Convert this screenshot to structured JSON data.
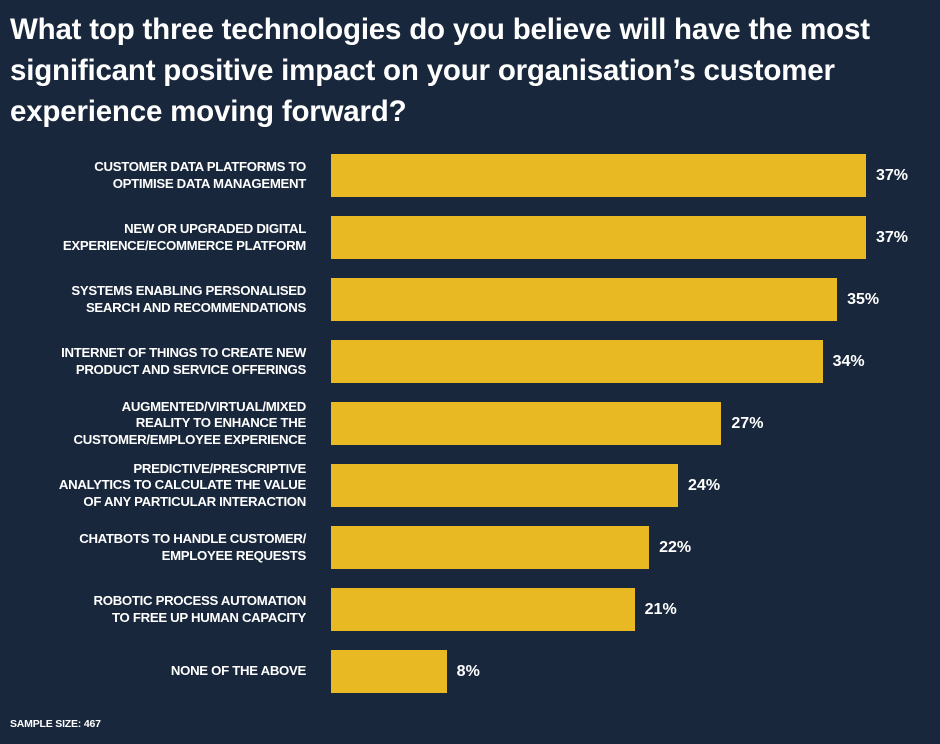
{
  "chart_data": {
    "type": "bar",
    "orientation": "horizontal",
    "title": "What top three technologies do you believe will have the most significant positive impact on your organisation’s customer experience moving forward?",
    "categories": [
      "CUSTOMER DATA PLATFORMS TO OPTIMISE DATA MANAGEMENT",
      "NEW OR UPGRADED DIGITAL EXPERIENCE/ECOMMERCE PLATFORM",
      "SYSTEMS ENABLING PERSONALISED SEARCH AND RECOMMENDATIONS",
      "INTERNET OF THINGS TO CREATE NEW PRODUCT AND SERVICE OFFERINGS",
      "AUGMENTED/VIRTUAL/MIXED REALITY TO ENHANCE THE CUSTOMER/EMPLOYEE EXPERIENCE",
      "PREDICTIVE/PRESCRIPTIVE ANALYTICS TO CALCULATE THE VALUE OF ANY PARTICULAR INTERACTION",
      "CHATBOTS TO HANDLE CUSTOMER/ EMPLOYEE REQUESTS",
      "ROBOTIC PROCESS AUTOMATION TO FREE UP HUMAN CAPACITY",
      "NONE OF THE ABOVE"
    ],
    "label_lines": [
      [
        "CUSTOMER DATA PLATFORMS TO",
        "OPTIMISE DATA MANAGEMENT"
      ],
      [
        "NEW OR UPGRADED DIGITAL",
        "EXPERIENCE/ECOMMERCE PLATFORM"
      ],
      [
        "SYSTEMS ENABLING PERSONALISED",
        "SEARCH AND RECOMMENDATIONS"
      ],
      [
        "INTERNET OF THINGS TO CREATE NEW",
        "PRODUCT AND SERVICE OFFERINGS"
      ],
      [
        "AUGMENTED/VIRTUAL/MIXED",
        "REALITY TO ENHANCE THE",
        "CUSTOMER/EMPLOYEE EXPERIENCE"
      ],
      [
        "PREDICTIVE/PRESCRIPTIVE",
        "ANALYTICS TO CALCULATE THE VALUE",
        "OF ANY PARTICULAR INTERACTION"
      ],
      [
        "CHATBOTS TO HANDLE CUSTOMER/",
        "EMPLOYEE REQUESTS"
      ],
      [
        "ROBOTIC PROCESS AUTOMATION",
        "TO FREE UP HUMAN CAPACITY"
      ],
      [
        "NONE OF THE ABOVE"
      ]
    ],
    "values": [
      37,
      37,
      35,
      34,
      27,
      24,
      22,
      21,
      8
    ],
    "data_labels": [
      "37%",
      "37%",
      "35%",
      "34%",
      "27%",
      "24%",
      "22%",
      "21%",
      "8%"
    ],
    "unit": "%",
    "xlim": [
      0,
      37
    ],
    "grid": false,
    "legend": "none",
    "colors": {
      "bar": "#e9b923",
      "background": "#18273b",
      "text": "#ffffff"
    }
  },
  "footer": {
    "sample_size": "SAMPLE SIZE: 467"
  }
}
